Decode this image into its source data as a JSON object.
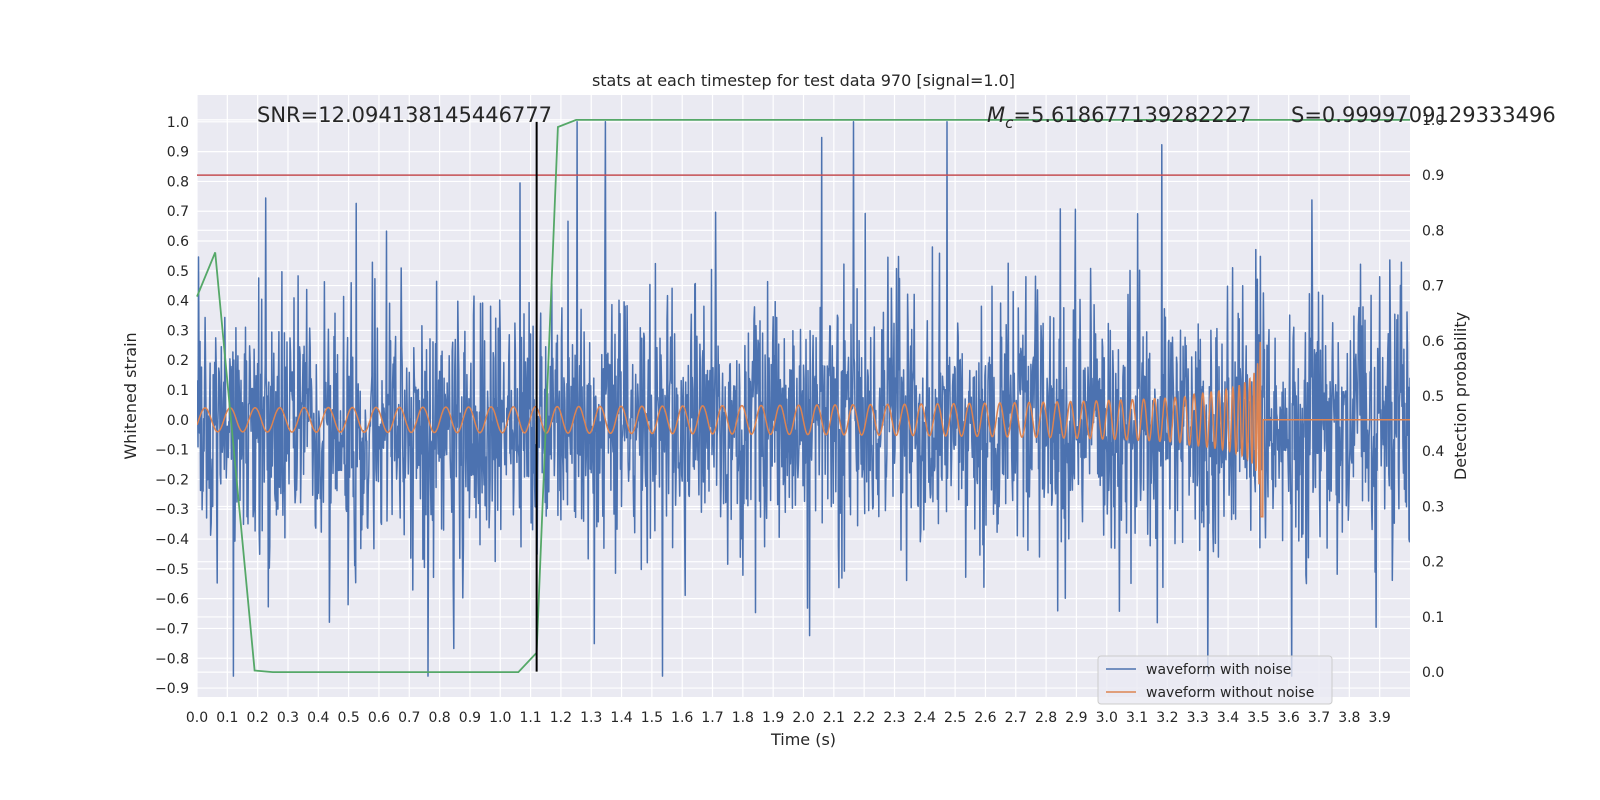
{
  "chart_data": {
    "type": "line",
    "title": "stats at each timestep for test data 970 [signal=1.0]",
    "xlabel": "Time (s)",
    "ylabel": "Whitened strain",
    "y2label": "Detection probability",
    "xlim": [
      0.0,
      4.0
    ],
    "ylim": [
      -0.93,
      1.09
    ],
    "y2lim": [
      -0.045,
      1.045
    ],
    "xticks": [
      "0.0",
      "0.1",
      "0.2",
      "0.3",
      "0.4",
      "0.5",
      "0.6",
      "0.7",
      "0.8",
      "0.9",
      "1.0",
      "1.1",
      "1.2",
      "1.3",
      "1.4",
      "1.5",
      "1.6",
      "1.7",
      "1.8",
      "1.9",
      "2.0",
      "2.1",
      "2.2",
      "2.3",
      "2.4",
      "2.5",
      "2.6",
      "2.7",
      "2.8",
      "2.9",
      "3.0",
      "3.1",
      "3.2",
      "3.3",
      "3.4",
      "3.5",
      "3.6",
      "3.7",
      "3.8",
      "3.9"
    ],
    "yticks": [
      "1.0",
      "0.9",
      "0.8",
      "0.7",
      "0.6",
      "0.5",
      "0.4",
      "0.3",
      "0.2",
      "0.1",
      "0.0",
      "−0.1",
      "−0.2",
      "−0.3",
      "−0.4",
      "−0.5",
      "−0.6",
      "−0.7",
      "−0.8",
      "−0.9"
    ],
    "y2ticks": [
      "1.0",
      "0.9",
      "0.8",
      "0.7",
      "0.6",
      "0.5",
      "0.4",
      "0.3",
      "0.2",
      "0.1",
      "0.0"
    ],
    "annotations": {
      "snr": "SNR=12.094138145446777",
      "mc_symbol": "M",
      "mc_sub": "c",
      "mc_value": "=5.618677139282227",
      "s": "S=0.9999709129333496"
    },
    "series": [
      {
        "name": "waveform with noise",
        "color": "#4c72b0",
        "description": "whitened noisy strain, amplitude roughly within [-0.85, 1.0]"
      },
      {
        "name": "waveform without noise",
        "color": "#dd8452",
        "description": "chirp signal, amplitude ~0.04 rising to ~0.33 at merger near t=3.51 s, flat after"
      },
      {
        "name": "detection probability",
        "color": "#55a868",
        "axis": "right",
        "x": [
          0.0,
          0.06,
          0.19,
          0.25,
          1.06,
          1.12,
          1.19,
          1.25,
          4.0
        ],
        "y": [
          0.68,
          0.76,
          0.003,
          0.0,
          0.0,
          0.035,
          0.987,
          1.0,
          1.0
        ]
      }
    ],
    "threshold": {
      "axis": "right",
      "y": 0.9,
      "color": "#c44e52"
    },
    "marker_line": {
      "x": 1.12,
      "y_top": 1.0,
      "y_bottom": -0.845,
      "color": "#000000"
    },
    "legend": {
      "position": "lower-right",
      "entries": [
        "waveform with noise",
        "waveform without noise"
      ]
    }
  }
}
